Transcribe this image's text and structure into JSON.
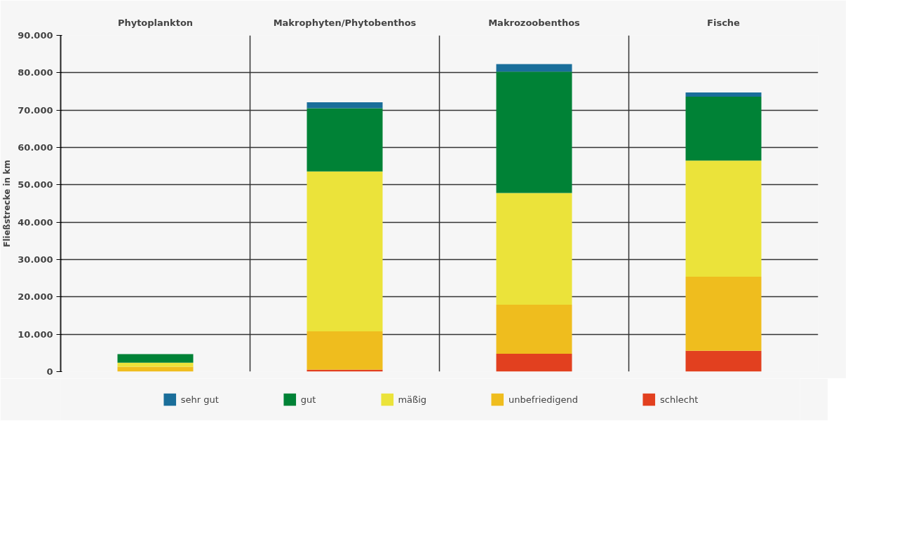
{
  "chart_data": {
    "type": "bar",
    "stacked": true,
    "ylabel": "Fließstrecke in km",
    "categories": [
      "Phytoplankton",
      "Makrophyten/Phytobenthos",
      "Makrozoobenthos",
      "Fische"
    ],
    "series": [
      {
        "name": "schlecht",
        "color": "#e2401f",
        "values": [
          0,
          500,
          4800,
          5600
        ]
      },
      {
        "name": "unbefriedigend",
        "color": "#efbd1e",
        "values": [
          1300,
          10300,
          13100,
          19800
        ]
      },
      {
        "name": "mäßig",
        "color": "#ebe33a",
        "values": [
          1100,
          42800,
          29900,
          31100
        ]
      },
      {
        "name": "gut",
        "color": "#008236",
        "values": [
          2300,
          16900,
          32500,
          17100
        ]
      },
      {
        "name": "sehr gut",
        "color": "#1a6e9a",
        "values": [
          0,
          1600,
          2000,
          1100
        ]
      }
    ],
    "ylim": [
      0,
      90000
    ],
    "yticks": [
      0,
      {
        "value": 10000,
        "label": "10.000"
      },
      {
        "value": 20000,
        "label": "20.000"
      },
      {
        "value": 30000,
        "label": "30.000"
      },
      {
        "value": 40000,
        "label": "40.000"
      },
      {
        "value": 50000,
        "label": "50.000"
      },
      {
        "value": 60000,
        "label": "60.000"
      },
      {
        "value": 70000,
        "label": "70.000"
      },
      {
        "value": 80000,
        "label": "80.000"
      },
      {
        "value": 90000,
        "label": "90.000"
      }
    ],
    "grid": true,
    "legend": "bottom"
  }
}
